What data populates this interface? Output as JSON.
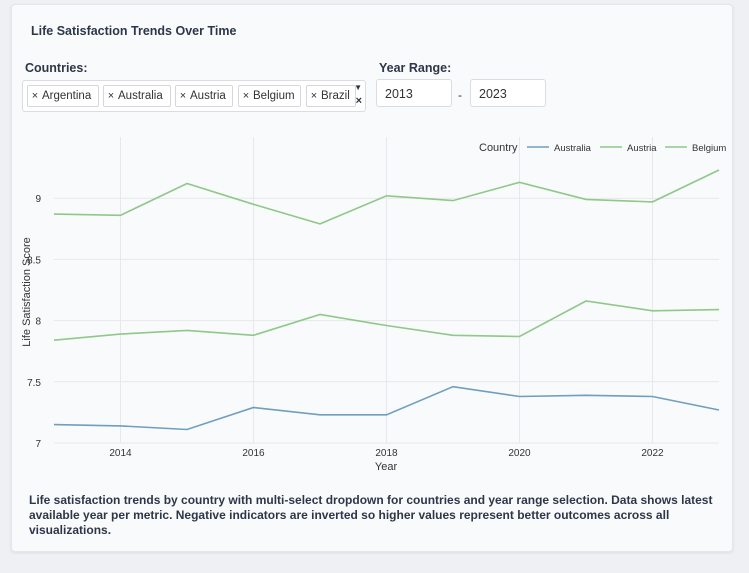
{
  "header": {
    "title": "Life Satisfaction Trends Over Time"
  },
  "filters": {
    "countries_label": "Countries:",
    "selected_countries": [
      "Argentina",
      "Australia",
      "Austria",
      "Belgium",
      "Brazil"
    ],
    "remove_glyph": "×",
    "year_range_label": "Year Range:",
    "year_start": "2013",
    "year_separator": "-",
    "year_end": "2023"
  },
  "chart_data": {
    "type": "line",
    "xlabel": "Year",
    "ylabel": "Life Satisfaction Score",
    "xlim": [
      2013,
      2023
    ],
    "ylim": [
      7,
      9.5
    ],
    "x_ticks": [
      2014,
      2016,
      2018,
      2020,
      2022
    ],
    "y_ticks": [
      7,
      7.5,
      8,
      8.5,
      9
    ],
    "legend_title": "Country",
    "legend_position": "top-right",
    "grid": true,
    "x": [
      2013,
      2014,
      2015,
      2016,
      2017,
      2018,
      2019,
      2020,
      2021,
      2022,
      2023
    ],
    "series": [
      {
        "name": "Australia",
        "color": "#6f9ebf",
        "values": [
          7.15,
          7.14,
          7.11,
          7.29,
          7.23,
          7.23,
          7.46,
          7.38,
          7.39,
          7.38,
          7.27
        ]
      },
      {
        "name": "Austria",
        "color": "#8fc88a",
        "values": [
          8.87,
          8.86,
          9.12,
          8.95,
          8.79,
          9.02,
          8.98,
          9.13,
          8.99,
          8.97,
          9.23
        ]
      },
      {
        "name": "Belgium",
        "color": "#8fc88a",
        "values": [
          7.84,
          7.89,
          7.92,
          7.88,
          8.05,
          7.96,
          7.88,
          7.87,
          8.16,
          8.08,
          8.09
        ]
      }
    ]
  },
  "caption": "Life satisfaction trends by country with multi-select dropdown for countries and year range selection. Data shows latest available year per metric. Negative indicators are inverted so higher values represent better outcomes across all visualizations."
}
